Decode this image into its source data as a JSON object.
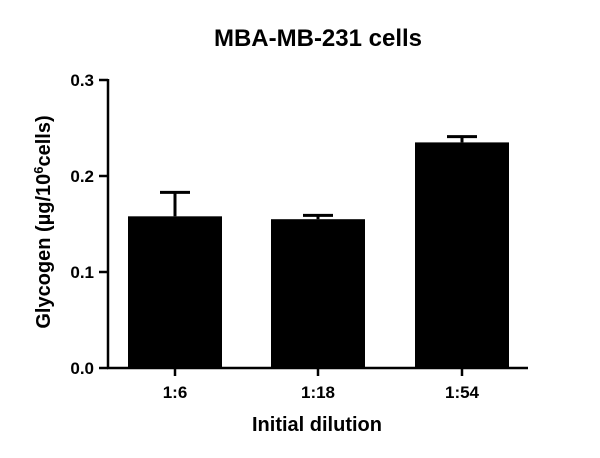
{
  "chart_data": {
    "type": "bar",
    "title": "MBA-MB-231 cells",
    "xlabel": "Initial dilution",
    "ylabel_main": "Glycogen (µg/10",
    "ylabel_sup": "6",
    "ylabel_tail": "cells)",
    "categories": [
      "1:6",
      "1:18",
      "1:54"
    ],
    "values": [
      0.158,
      0.155,
      0.235
    ],
    "error_upper": [
      0.025,
      0.004,
      0.006
    ],
    "ylim": [
      0.0,
      0.3
    ],
    "yticks": [
      0.0,
      0.1,
      0.2,
      0.3
    ],
    "ytick_labels": [
      "0.0",
      "0.1",
      "0.2",
      "0.3"
    ],
    "grid": false,
    "bar_color": "#000000"
  }
}
